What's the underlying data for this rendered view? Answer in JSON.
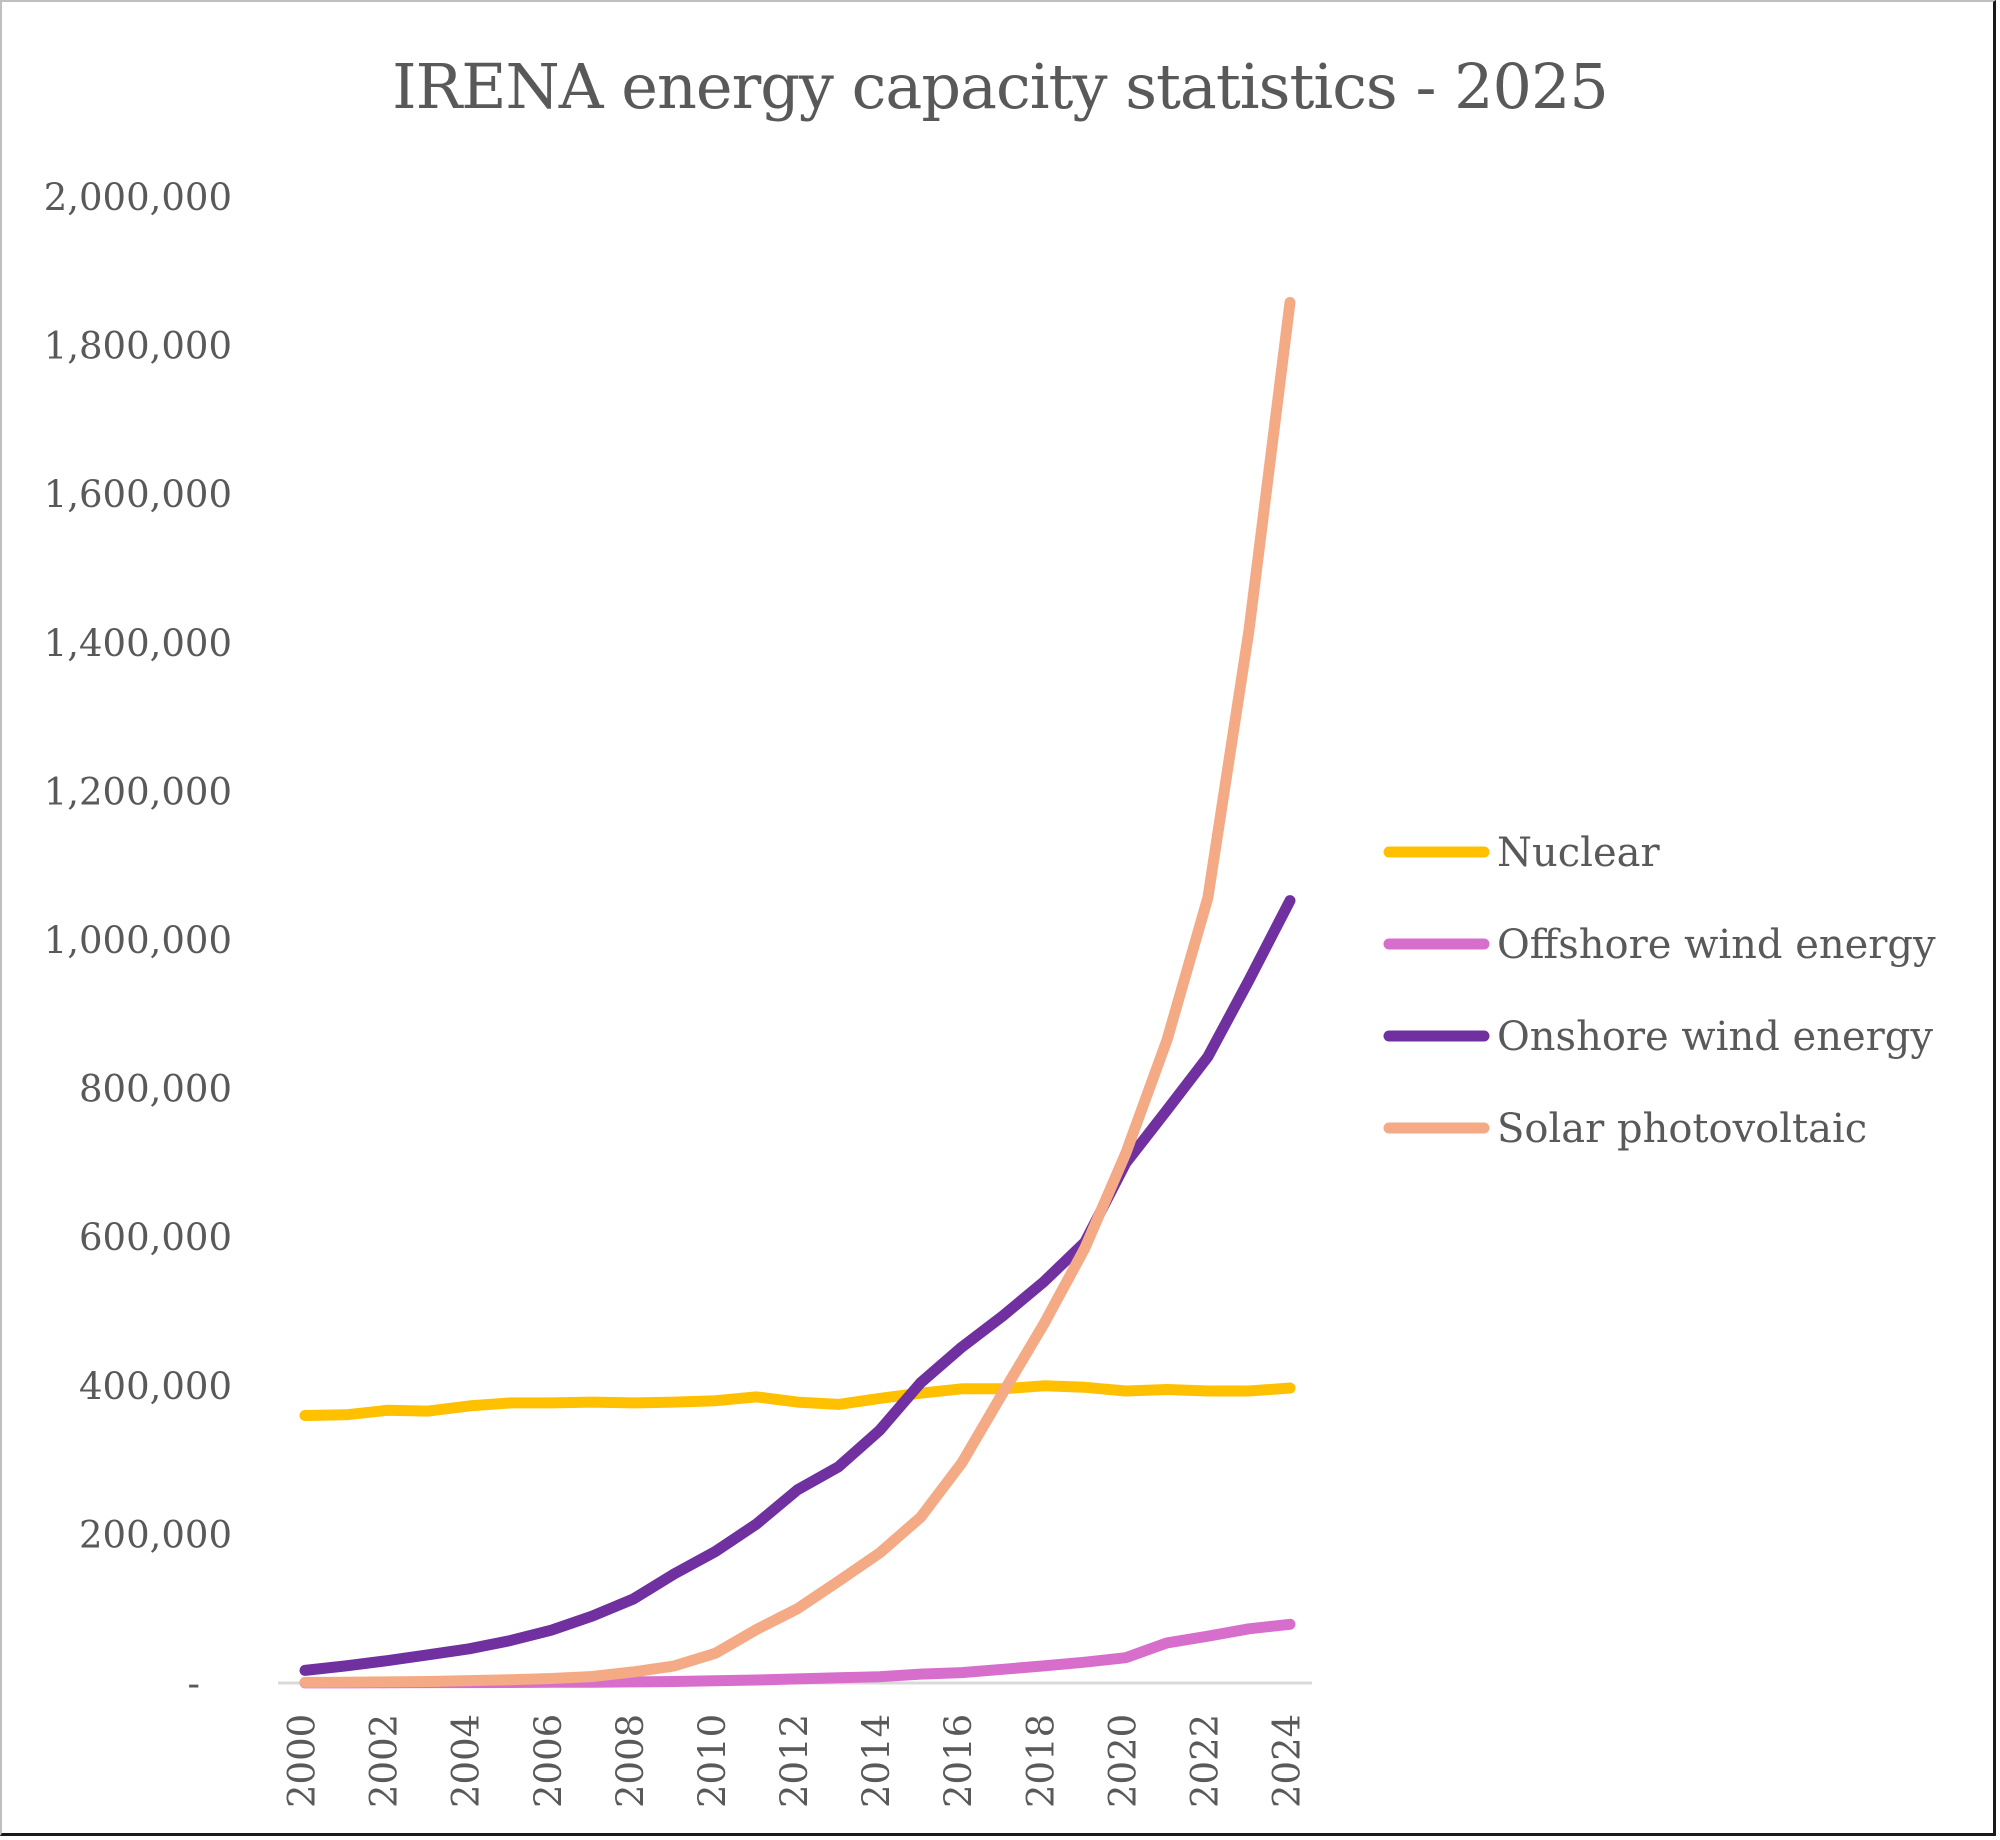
{
  "chart_data": {
    "type": "line",
    "title": "IRENA energy capacity statistics - 2025",
    "xlabel": "",
    "ylabel": "",
    "ylim": [
      0,
      2000000
    ],
    "yticks": [
      0,
      200000,
      400000,
      600000,
      800000,
      1000000,
      1200000,
      1400000,
      1600000,
      1800000,
      2000000
    ],
    "ytick_labels": [
      "-",
      "200,000",
      "400,000",
      "600,000",
      "800,000",
      "1,000,000",
      "1,200,000",
      "1,400,000",
      "1,600,000",
      "1,800,000",
      "2,000,000"
    ],
    "x": [
      2000,
      2001,
      2002,
      2003,
      2004,
      2005,
      2006,
      2007,
      2008,
      2009,
      2010,
      2011,
      2012,
      2013,
      2014,
      2015,
      2016,
      2017,
      2018,
      2019,
      2020,
      2021,
      2022,
      2023,
      2024
    ],
    "xtick_labels": [
      "2000",
      "2002",
      "2004",
      "2006",
      "2008",
      "2010",
      "2012",
      "2014",
      "2016",
      "2018",
      "2020",
      "2022",
      "2024"
    ],
    "grid": false,
    "legend_position": "right",
    "series": [
      {
        "name": "Nuclear",
        "color": "#FFC000",
        "values": [
          360000,
          361000,
          367000,
          366000,
          373000,
          377000,
          377000,
          378000,
          377000,
          378000,
          380000,
          385000,
          378000,
          375000,
          383000,
          390000,
          396000,
          396000,
          400000,
          398000,
          393000,
          395000,
          393000,
          393000,
          397000
        ]
      },
      {
        "name": "Offshore wind energy",
        "color": "#D86ECC",
        "values": [
          100,
          200,
          300,
          500,
          600,
          700,
          900,
          1100,
          1500,
          2000,
          3000,
          4000,
          5500,
          7000,
          8500,
          12000,
          14000,
          18500,
          23000,
          28000,
          34000,
          54000,
          63000,
          73000,
          79000
        ]
      },
      {
        "name": "Onshore wind energy",
        "color": "#7030A0",
        "values": [
          17000,
          23000,
          30000,
          38000,
          46000,
          57000,
          71000,
          90000,
          113000,
          147000,
          177000,
          214000,
          260000,
          291000,
          340000,
          404000,
          452000,
          494000,
          540000,
          593000,
          700000,
          771000,
          843000,
          946000,
          1053000
        ]
      },
      {
        "name": "Solar photovoltaic",
        "color": "#F4AA84",
        "values": [
          800,
          1100,
          1500,
          2000,
          3200,
          4500,
          6100,
          8700,
          15000,
          23000,
          40000,
          72000,
          100000,
          137000,
          175000,
          223000,
          296000,
          390000,
          483000,
          585000,
          713000,
          865000,
          1057000,
          1417000,
          1858000
        ]
      }
    ]
  }
}
